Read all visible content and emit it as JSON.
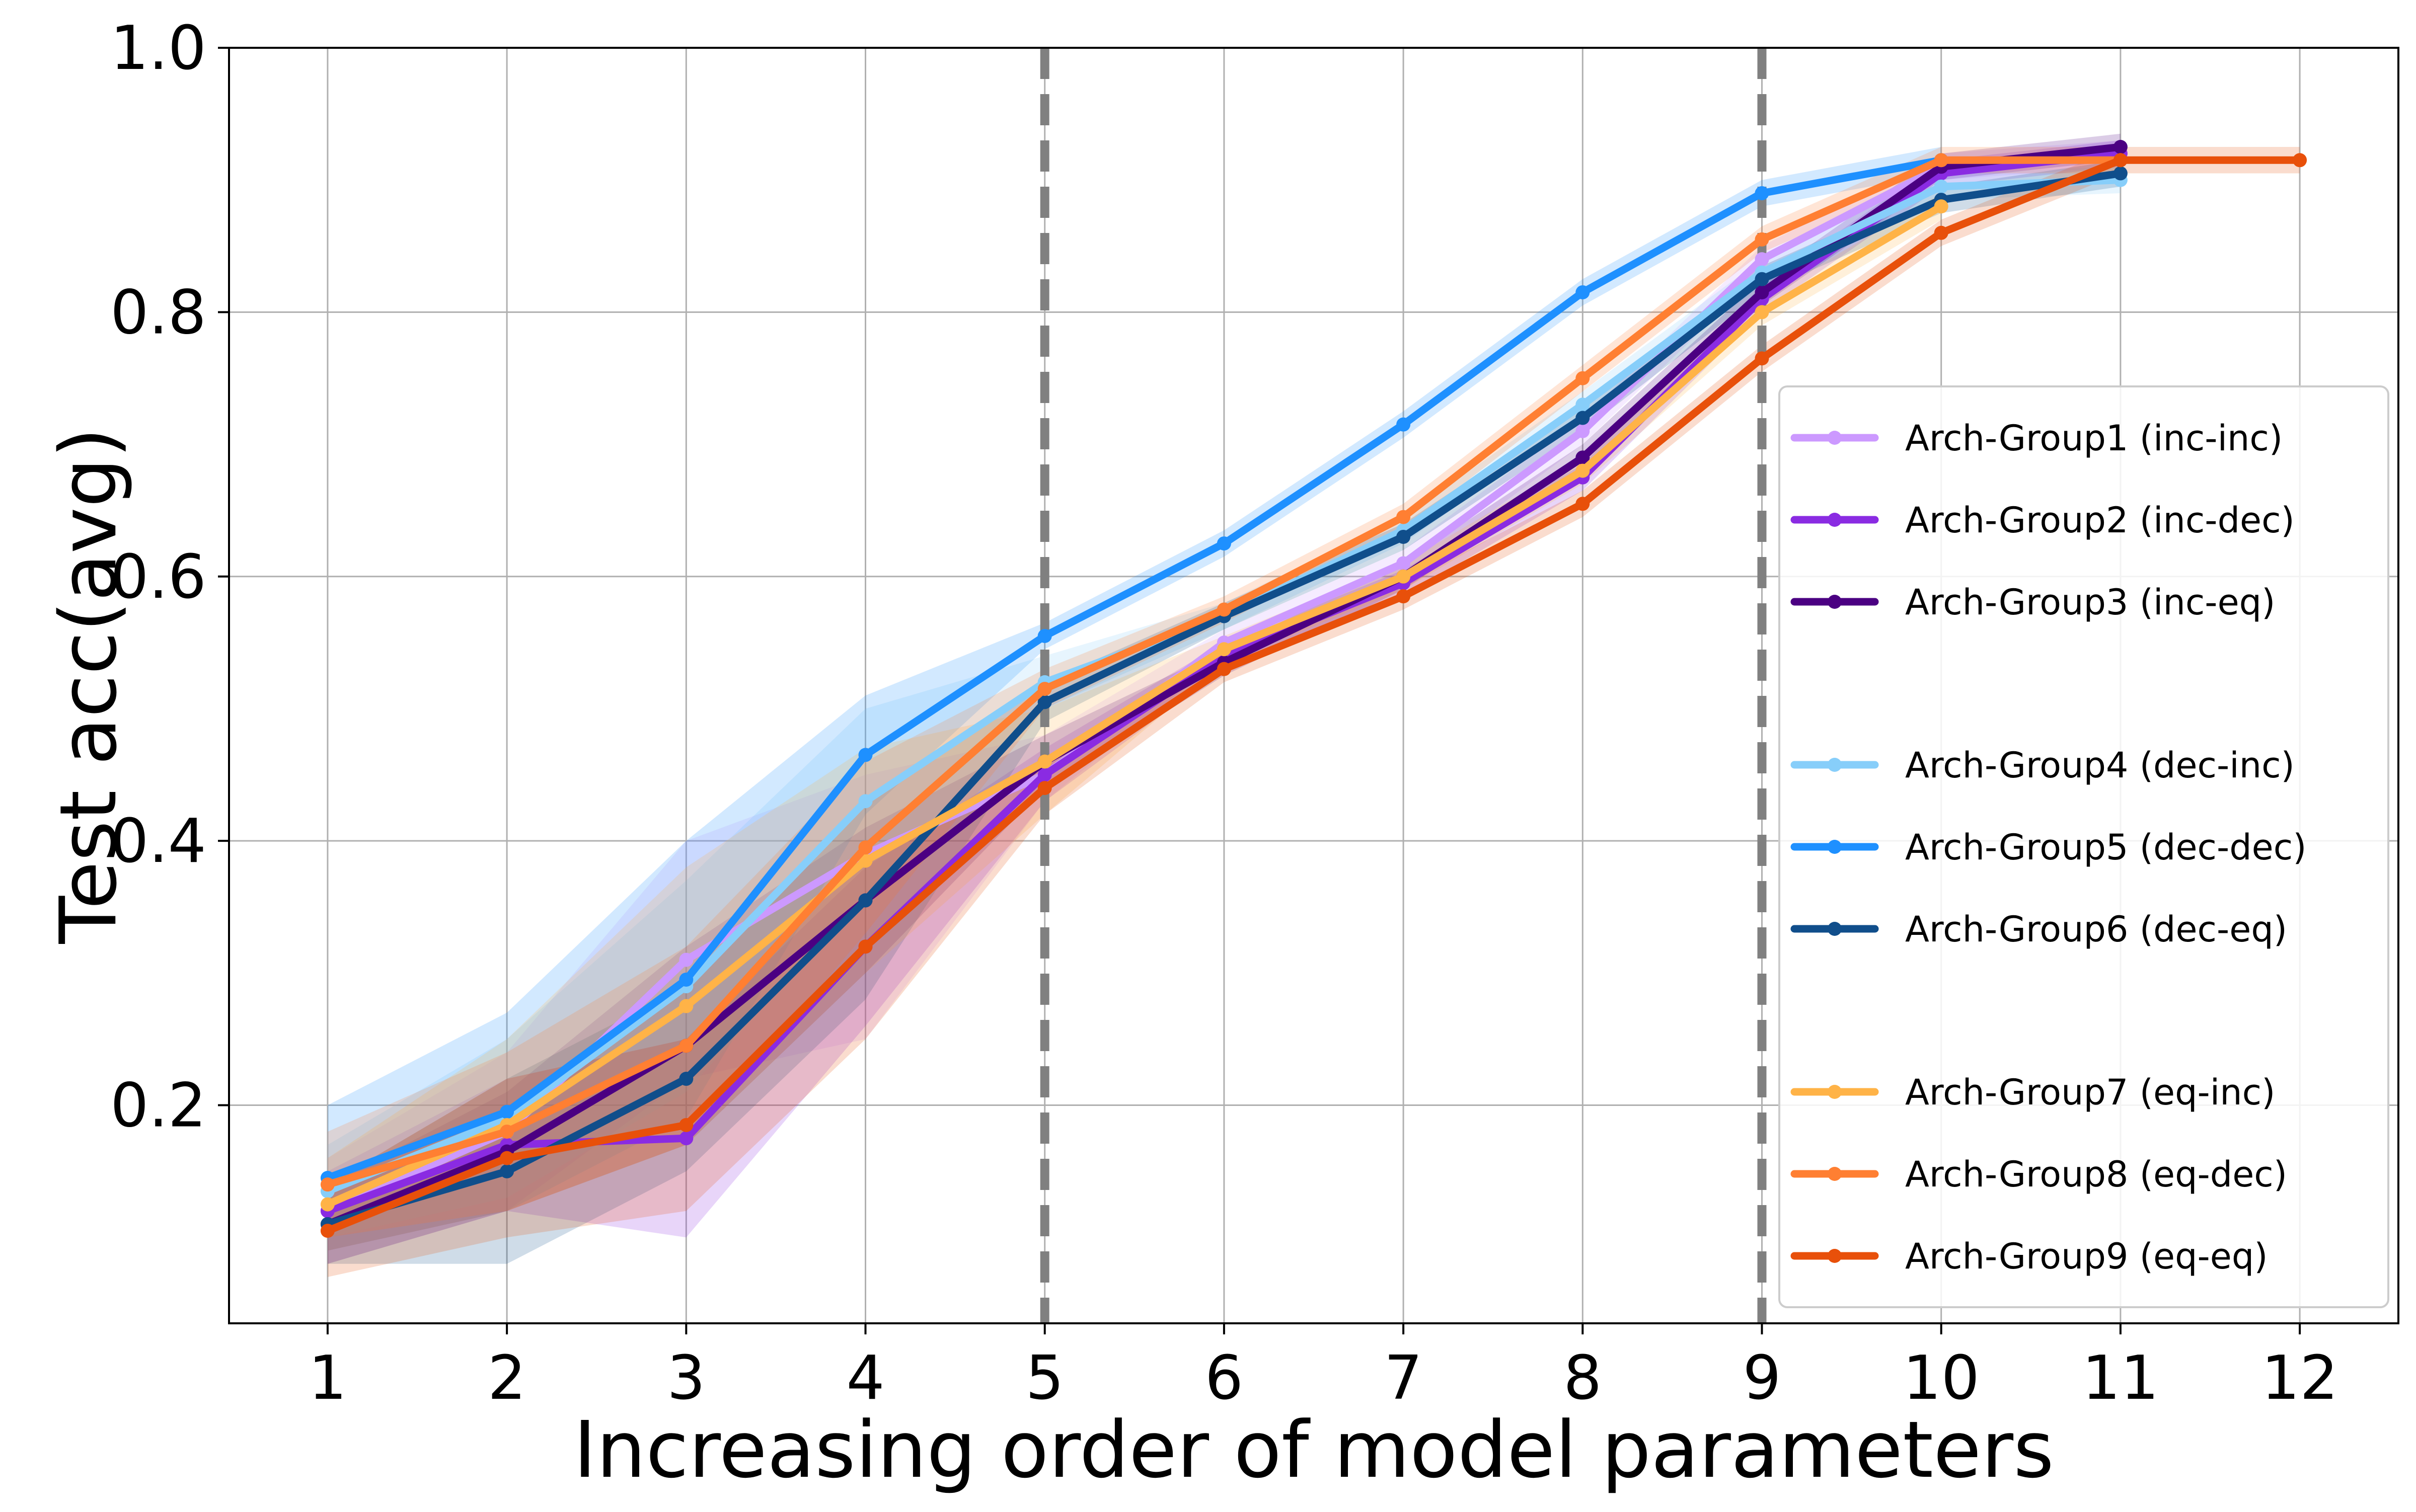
{
  "chart_data": {
    "type": "line",
    "title": "",
    "xlabel": "Increasing order of model parameters",
    "ylabel": "Test acc(avg)",
    "xlim": [
      0.45,
      12.55
    ],
    "ylim": [
      0.035,
      1.0
    ],
    "xticks": [
      "1",
      "2",
      "3",
      "4",
      "5",
      "6",
      "7",
      "8",
      "9",
      "10",
      "11",
      "12"
    ],
    "yticks": [
      "0.2",
      "0.4",
      "0.6",
      "0.8",
      "1.0"
    ],
    "grid": true,
    "legend_position": "center-right",
    "vertical_lines": [
      {
        "x": 5,
        "style": "dashed",
        "color": "#808080"
      },
      {
        "x": 9,
        "style": "dashed",
        "color": "#808080"
      }
    ],
    "series": [
      {
        "name": "Arch-Group1 (inc-inc)",
        "color": "#CC99FF",
        "x": [
          1,
          2,
          3,
          4,
          5,
          6,
          7,
          8,
          9,
          10,
          11
        ],
        "values": [
          0.12,
          0.18,
          0.31,
          0.39,
          0.45,
          0.55,
          0.61,
          0.71,
          0.84,
          0.91,
          0.92
        ],
        "lower": [
          0.08,
          0.12,
          0.22,
          0.25,
          0.43,
          0.54,
          0.6,
          0.7,
          0.83,
          0.9,
          0.91
        ],
        "upper": [
          0.16,
          0.24,
          0.4,
          0.45,
          0.48,
          0.56,
          0.62,
          0.72,
          0.85,
          0.92,
          0.93
        ]
      },
      {
        "name": "Arch-Group2 (inc-dec)",
        "color": "#8A2BE2",
        "x": [
          1,
          2,
          3,
          4,
          5,
          6,
          7,
          8,
          9,
          10,
          11
        ],
        "values": [
          0.12,
          0.17,
          0.175,
          0.32,
          0.45,
          0.54,
          0.595,
          0.675,
          0.81,
          0.905,
          0.92
        ],
        "lower": [
          0.09,
          0.12,
          0.1,
          0.26,
          0.43,
          0.53,
          0.585,
          0.665,
          0.8,
          0.895,
          0.91
        ],
        "upper": [
          0.15,
          0.22,
          0.25,
          0.38,
          0.47,
          0.55,
          0.605,
          0.685,
          0.82,
          0.915,
          0.93
        ]
      },
      {
        "name": "Arch-Group3 (inc-eq)",
        "color": "#4B0082",
        "x": [
          1,
          2,
          3,
          4,
          5,
          6,
          7,
          8,
          9,
          10,
          11
        ],
        "values": [
          0.11,
          0.165,
          0.245,
          0.355,
          0.46,
          0.535,
          0.6,
          0.69,
          0.815,
          0.91,
          0.925
        ],
        "lower": [
          0.08,
          0.12,
          0.17,
          0.3,
          0.44,
          0.525,
          0.59,
          0.68,
          0.805,
          0.9,
          0.915
        ],
        "upper": [
          0.14,
          0.21,
          0.32,
          0.41,
          0.48,
          0.545,
          0.61,
          0.7,
          0.825,
          0.92,
          0.935
        ]
      },
      {
        "name": "Arch-Group4 (dec-inc)",
        "color": "#87CEFA",
        "x": [
          1,
          2,
          3,
          4,
          5,
          6,
          7,
          8,
          9,
          10,
          11
        ],
        "values": [
          0.135,
          0.19,
          0.29,
          0.43,
          0.52,
          0.57,
          0.635,
          0.73,
          0.83,
          0.895,
          0.9
        ],
        "lower": [
          0.1,
          0.13,
          0.21,
          0.36,
          0.5,
          0.56,
          0.625,
          0.72,
          0.82,
          0.885,
          0.89
        ],
        "upper": [
          0.17,
          0.25,
          0.37,
          0.5,
          0.54,
          0.58,
          0.645,
          0.74,
          0.84,
          0.905,
          0.91
        ]
      },
      {
        "name": "Arch-Group5 (dec-dec)",
        "color": "#1E90FF",
        "x": [
          1,
          2,
          3,
          4,
          5,
          6,
          7,
          8,
          9,
          10
        ],
        "values": [
          0.145,
          0.195,
          0.295,
          0.465,
          0.555,
          0.625,
          0.715,
          0.815,
          0.89,
          0.915
        ],
        "lower": [
          0.09,
          0.12,
          0.19,
          0.42,
          0.545,
          0.615,
          0.705,
          0.805,
          0.88,
          0.905
        ],
        "upper": [
          0.2,
          0.27,
          0.4,
          0.51,
          0.565,
          0.635,
          0.725,
          0.825,
          0.9,
          0.925
        ]
      },
      {
        "name": "Arch-Group6 (dec-eq)",
        "color": "#104E8B",
        "x": [
          1,
          2,
          3,
          4,
          5,
          6,
          7,
          8,
          9,
          10,
          11
        ],
        "values": [
          0.11,
          0.15,
          0.22,
          0.355,
          0.505,
          0.57,
          0.63,
          0.72,
          0.825,
          0.885,
          0.905
        ],
        "lower": [
          0.08,
          0.08,
          0.15,
          0.28,
          0.49,
          0.56,
          0.62,
          0.71,
          0.815,
          0.875,
          0.895
        ],
        "upper": [
          0.14,
          0.22,
          0.29,
          0.43,
          0.52,
          0.58,
          0.64,
          0.73,
          0.835,
          0.895,
          0.915
        ]
      },
      {
        "name": "Arch-Group7 (eq-inc)",
        "color": "#FFB347",
        "x": [
          1,
          2,
          3,
          4,
          5,
          6,
          7,
          8,
          9,
          10
        ],
        "values": [
          0.125,
          0.185,
          0.275,
          0.385,
          0.46,
          0.545,
          0.6,
          0.68,
          0.8,
          0.88
        ],
        "lower": [
          0.09,
          0.12,
          0.17,
          0.3,
          0.42,
          0.535,
          0.59,
          0.67,
          0.79,
          0.87
        ],
        "upper": [
          0.16,
          0.25,
          0.38,
          0.47,
          0.5,
          0.555,
          0.61,
          0.69,
          0.81,
          0.89
        ]
      },
      {
        "name": "Arch-Group8 (eq-dec)",
        "color": "#FF7F32",
        "x": [
          1,
          2,
          3,
          4,
          5,
          6,
          7,
          8,
          9,
          10,
          11
        ],
        "values": [
          0.14,
          0.18,
          0.245,
          0.395,
          0.515,
          0.575,
          0.645,
          0.75,
          0.855,
          0.915,
          0.915
        ],
        "lower": [
          0.1,
          0.12,
          0.17,
          0.33,
          0.5,
          0.565,
          0.635,
          0.74,
          0.845,
          0.905,
          0.905
        ],
        "upper": [
          0.18,
          0.24,
          0.32,
          0.46,
          0.53,
          0.585,
          0.655,
          0.76,
          0.865,
          0.925,
          0.925
        ]
      },
      {
        "name": "Arch-Group9 (eq-eq)",
        "color": "#E8500A",
        "x": [
          1,
          2,
          3,
          4,
          5,
          6,
          7,
          8,
          9,
          10,
          11,
          12
        ],
        "values": [
          0.105,
          0.16,
          0.185,
          0.32,
          0.44,
          0.53,
          0.585,
          0.655,
          0.765,
          0.86,
          0.915,
          0.915
        ],
        "lower": [
          0.07,
          0.1,
          0.12,
          0.25,
          0.42,
          0.52,
          0.575,
          0.645,
          0.755,
          0.85,
          0.905,
          0.905
        ],
        "upper": [
          0.14,
          0.22,
          0.25,
          0.39,
          0.46,
          0.54,
          0.595,
          0.665,
          0.775,
          0.87,
          0.925,
          0.925
        ]
      }
    ]
  }
}
